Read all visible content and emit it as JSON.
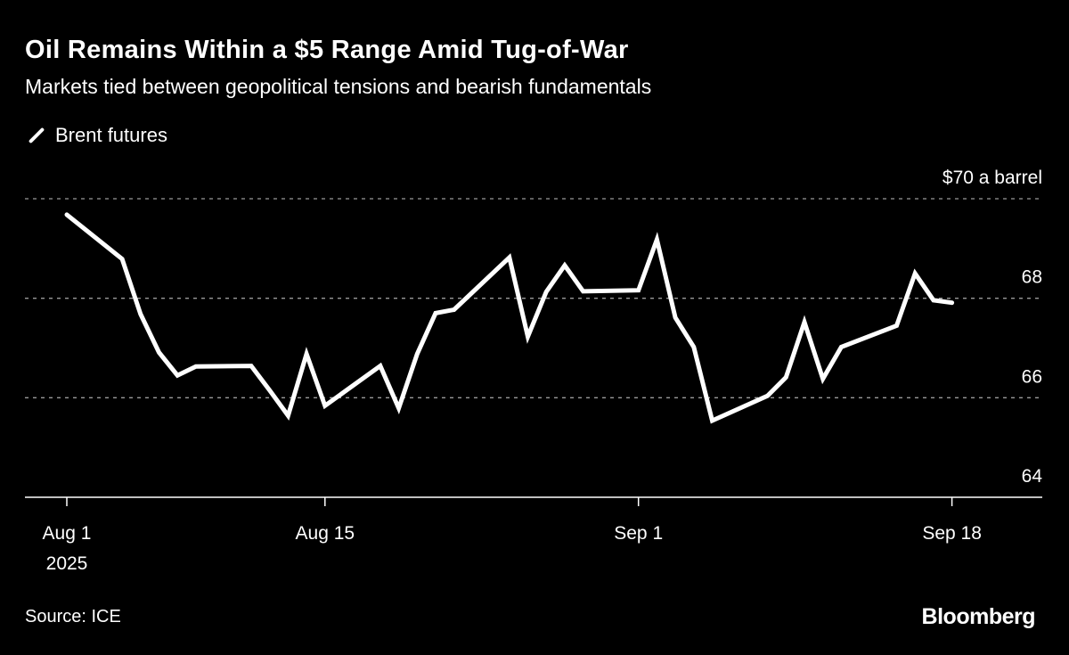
{
  "header": {
    "title": "Oil Remains Within a $5 Range Amid Tug-of-War",
    "subtitle": "Markets tied between geopolitical tensions and bearish fundamentals"
  },
  "footer": {
    "source": "Source: ICE",
    "logo": "Bloomberg"
  },
  "chart_data": {
    "type": "line",
    "title": "Oil Remains Within a $5 Range Amid Tug-of-War",
    "subtitle": "Markets tied between geopolitical tensions and bearish fundamentals",
    "ylabel": "$70 a barrel",
    "ylim": [
      64,
      70
    ],
    "yticks": [
      64,
      66,
      68,
      70
    ],
    "ytick_labels": [
      "64",
      "66",
      "68",
      "$70 a barrel"
    ],
    "xticks": [
      {
        "date": "2025-08-01",
        "label": "Aug 1",
        "sublabel": "2025"
      },
      {
        "date": "2025-08-15",
        "label": "Aug 15"
      },
      {
        "date": "2025-09-01",
        "label": "Sep 1"
      },
      {
        "date": "2025-09-18",
        "label": "Sep 18"
      }
    ],
    "grid": true,
    "legend_position": "top-left",
    "line_color": "#ffffff",
    "series": [
      {
        "name": "Brent futures",
        "points": [
          [
            "2025-08-01",
            69.68
          ],
          [
            "2025-08-04",
            68.79
          ],
          [
            "2025-08-05",
            67.68
          ],
          [
            "2025-08-06",
            66.91
          ],
          [
            "2025-08-07",
            66.45
          ],
          [
            "2025-08-08",
            66.63
          ],
          [
            "2025-08-11",
            66.64
          ],
          [
            "2025-08-12",
            66.15
          ],
          [
            "2025-08-13",
            65.64
          ],
          [
            "2025-08-14",
            66.88
          ],
          [
            "2025-08-15",
            65.84
          ],
          [
            "2025-08-18",
            66.64
          ],
          [
            "2025-08-19",
            65.79
          ],
          [
            "2025-08-20",
            66.88
          ],
          [
            "2025-08-21",
            67.7
          ],
          [
            "2025-08-22",
            67.77
          ],
          [
            "2025-08-25",
            68.82
          ],
          [
            "2025-08-26",
            67.23
          ],
          [
            "2025-08-27",
            68.13
          ],
          [
            "2025-08-28",
            68.66
          ],
          [
            "2025-08-29",
            68.14
          ],
          [
            "2025-09-01",
            68.16
          ],
          [
            "2025-09-02",
            69.18
          ],
          [
            "2025-09-03",
            67.61
          ],
          [
            "2025-09-04",
            67.02
          ],
          [
            "2025-09-05",
            65.54
          ],
          [
            "2025-09-08",
            66.04
          ],
          [
            "2025-09-09",
            66.41
          ],
          [
            "2025-09-10",
            67.52
          ],
          [
            "2025-09-11",
            66.38
          ],
          [
            "2025-09-12",
            67.02
          ],
          [
            "2025-09-15",
            67.45
          ],
          [
            "2025-09-16",
            68.5
          ],
          [
            "2025-09-17",
            67.96
          ],
          [
            "2025-09-18",
            67.91
          ]
        ]
      }
    ]
  }
}
